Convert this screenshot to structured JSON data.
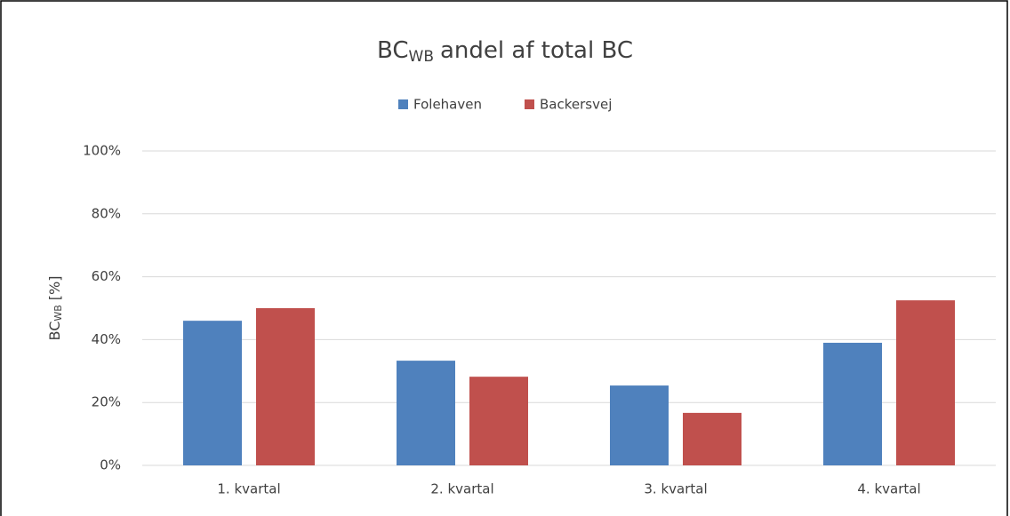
{
  "chart_data": {
    "type": "bar",
    "title_parts": [
      "BC",
      "WB",
      "andel af total BC"
    ],
    "y_label_parts": [
      "BC",
      "WB",
      "[%]"
    ],
    "categories": [
      "1. kvartal",
      "2. kvartal",
      "3. kvartal",
      "4. kvartal"
    ],
    "series": [
      {
        "name": "Folehaven",
        "color": "#4f81bd",
        "values": [
          46.0,
          33.3,
          25.4,
          39.0
        ]
      },
      {
        "name": "Backersvej",
        "color": "#c0504d",
        "values": [
          50.0,
          28.2,
          16.7,
          52.5
        ]
      }
    ],
    "ylim": [
      0,
      100
    ],
    "yticks": [
      {
        "value": 0,
        "label": "0%"
      },
      {
        "value": 20,
        "label": "20%"
      },
      {
        "value": 40,
        "label": "40%"
      },
      {
        "value": 60,
        "label": "60%"
      },
      {
        "value": 80,
        "label": "80%"
      },
      {
        "value": 100,
        "label": "100%"
      }
    ],
    "grid": true,
    "legend": "top"
  }
}
